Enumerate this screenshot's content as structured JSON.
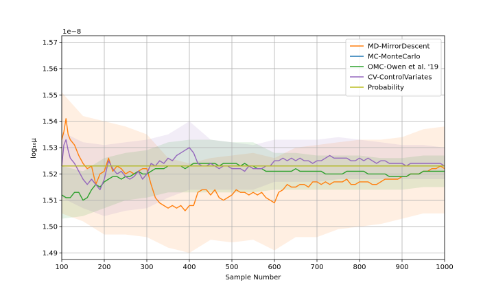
{
  "chart_data": {
    "type": "line",
    "title": "",
    "xlabel": "Sample Number",
    "ylabel": "log₁₀μ",
    "y_offset_label": "1e−8",
    "xlim": [
      100,
      1000
    ],
    "ylim": [
      1.4875,
      1.5725
    ],
    "x_ticks": [
      100,
      200,
      300,
      400,
      500,
      600,
      700,
      800,
      900,
      1000
    ],
    "x_tick_labels": [
      "100",
      "200",
      "300",
      "400",
      "500",
      "600",
      "700",
      "800",
      "900",
      "1000"
    ],
    "y_ticks": [
      1.49,
      1.5,
      1.51,
      1.52,
      1.53,
      1.54,
      1.55,
      1.56,
      1.57
    ],
    "y_tick_labels": [
      "1.49",
      "1.50",
      "1.51",
      "1.52",
      "1.53",
      "1.54",
      "1.55",
      "1.56",
      "1.57"
    ],
    "grid": true,
    "legend_position": "top-right",
    "series": [
      {
        "name": "MD-MirrorDescent",
        "color": "#ff7f0e",
        "x": [
          100,
          105,
          110,
          115,
          120,
          130,
          140,
          150,
          160,
          170,
          180,
          190,
          200,
          210,
          220,
          230,
          240,
          250,
          260,
          270,
          280,
          290,
          300,
          310,
          320,
          330,
          340,
          350,
          360,
          370,
          380,
          390,
          400,
          410,
          420,
          430,
          440,
          450,
          460,
          470,
          480,
          490,
          500,
          510,
          520,
          530,
          540,
          550,
          560,
          570,
          580,
          590,
          600,
          610,
          620,
          630,
          640,
          650,
          660,
          670,
          680,
          690,
          700,
          710,
          720,
          730,
          740,
          750,
          760,
          770,
          780,
          790,
          800,
          810,
          820,
          830,
          840,
          850,
          860,
          870,
          880,
          890,
          900,
          910,
          920,
          930,
          940,
          950,
          960,
          970,
          980,
          990,
          1000
        ],
        "y": [
          1.533,
          1.536,
          1.541,
          1.535,
          1.533,
          1.531,
          1.527,
          1.524,
          1.522,
          1.523,
          1.516,
          1.52,
          1.521,
          1.526,
          1.521,
          1.523,
          1.522,
          1.52,
          1.521,
          1.52,
          1.521,
          1.522,
          1.522,
          1.516,
          1.511,
          1.509,
          1.508,
          1.507,
          1.508,
          1.507,
          1.508,
          1.506,
          1.508,
          1.508,
          1.513,
          1.514,
          1.514,
          1.512,
          1.514,
          1.511,
          1.51,
          1.511,
          1.512,
          1.514,
          1.513,
          1.513,
          1.512,
          1.513,
          1.512,
          1.513,
          1.511,
          1.51,
          1.509,
          1.513,
          1.514,
          1.516,
          1.515,
          1.515,
          1.516,
          1.516,
          1.515,
          1.517,
          1.517,
          1.516,
          1.517,
          1.516,
          1.517,
          1.517,
          1.517,
          1.518,
          1.516,
          1.516,
          1.517,
          1.517,
          1.517,
          1.516,
          1.516,
          1.517,
          1.518,
          1.518,
          1.518,
          1.518,
          1.519,
          1.519,
          1.52,
          1.52,
          1.52,
          1.521,
          1.521,
          1.522,
          1.522,
          1.523,
          1.522
        ]
      },
      {
        "name": "MC-MonteCarlo",
        "color": "#1f77b4",
        "x": [
          100,
          1000
        ],
        "y": [
          1.523,
          1.523
        ]
      },
      {
        "name": "OMC-Owen et al. '19",
        "color": "#2ca02c",
        "x": [
          100,
          110,
          120,
          130,
          140,
          150,
          160,
          170,
          180,
          190,
          200,
          210,
          220,
          230,
          240,
          250,
          260,
          270,
          280,
          290,
          300,
          310,
          320,
          330,
          340,
          350,
          360,
          370,
          380,
          390,
          400,
          410,
          420,
          430,
          440,
          450,
          460,
          470,
          480,
          490,
          500,
          510,
          520,
          530,
          540,
          550,
          560,
          570,
          580,
          590,
          600,
          610,
          620,
          630,
          640,
          650,
          660,
          670,
          680,
          690,
          700,
          710,
          720,
          730,
          740,
          750,
          760,
          770,
          780,
          790,
          800,
          810,
          820,
          830,
          840,
          850,
          860,
          870,
          880,
          890,
          900,
          910,
          920,
          930,
          940,
          950,
          960,
          970,
          980,
          990,
          1000
        ],
        "y": [
          1.512,
          1.511,
          1.511,
          1.513,
          1.513,
          1.51,
          1.511,
          1.514,
          1.516,
          1.515,
          1.517,
          1.518,
          1.519,
          1.519,
          1.518,
          1.519,
          1.519,
          1.52,
          1.521,
          1.52,
          1.52,
          1.521,
          1.522,
          1.522,
          1.522,
          1.523,
          1.523,
          1.523,
          1.523,
          1.522,
          1.523,
          1.524,
          1.524,
          1.524,
          1.524,
          1.524,
          1.524,
          1.523,
          1.524,
          1.524,
          1.524,
          1.524,
          1.523,
          1.524,
          1.523,
          1.523,
          1.522,
          1.522,
          1.521,
          1.521,
          1.521,
          1.521,
          1.521,
          1.521,
          1.521,
          1.522,
          1.521,
          1.521,
          1.521,
          1.521,
          1.521,
          1.521,
          1.52,
          1.52,
          1.52,
          1.52,
          1.52,
          1.521,
          1.521,
          1.521,
          1.521,
          1.521,
          1.52,
          1.52,
          1.52,
          1.52,
          1.52,
          1.519,
          1.519,
          1.519,
          1.519,
          1.519,
          1.52,
          1.52,
          1.52,
          1.521,
          1.521,
          1.521,
          1.521,
          1.521,
          1.521
        ]
      },
      {
        "name": "CV-ControlVariates",
        "color": "#9467bd",
        "x": [
          100,
          105,
          110,
          115,
          120,
          130,
          140,
          150,
          160,
          170,
          180,
          190,
          200,
          210,
          220,
          230,
          240,
          250,
          260,
          270,
          280,
          290,
          300,
          310,
          320,
          330,
          340,
          350,
          360,
          370,
          380,
          390,
          400,
          410,
          420,
          430,
          440,
          450,
          460,
          470,
          480,
          490,
          500,
          510,
          520,
          530,
          540,
          550,
          560,
          570,
          580,
          590,
          600,
          610,
          620,
          630,
          640,
          650,
          660,
          670,
          680,
          690,
          700,
          710,
          720,
          730,
          740,
          750,
          760,
          770,
          780,
          790,
          800,
          810,
          820,
          830,
          840,
          850,
          860,
          870,
          880,
          890,
          900,
          910,
          920,
          930,
          940,
          950,
          960,
          970,
          980,
          990,
          1000
        ],
        "y": [
          1.523,
          1.531,
          1.533,
          1.529,
          1.526,
          1.524,
          1.521,
          1.518,
          1.516,
          1.518,
          1.516,
          1.514,
          1.518,
          1.525,
          1.522,
          1.52,
          1.521,
          1.519,
          1.518,
          1.519,
          1.521,
          1.518,
          1.52,
          1.524,
          1.523,
          1.525,
          1.524,
          1.526,
          1.525,
          1.527,
          1.528,
          1.529,
          1.53,
          1.528,
          1.524,
          1.523,
          1.523,
          1.524,
          1.523,
          1.522,
          1.523,
          1.523,
          1.522,
          1.522,
          1.522,
          1.521,
          1.523,
          1.522,
          1.522,
          1.522,
          1.523,
          1.523,
          1.525,
          1.525,
          1.526,
          1.525,
          1.526,
          1.525,
          1.526,
          1.525,
          1.525,
          1.524,
          1.525,
          1.525,
          1.526,
          1.527,
          1.526,
          1.526,
          1.526,
          1.526,
          1.525,
          1.525,
          1.526,
          1.525,
          1.526,
          1.525,
          1.524,
          1.525,
          1.525,
          1.524,
          1.524,
          1.524,
          1.524,
          1.523,
          1.524,
          1.524,
          1.524,
          1.524,
          1.524,
          1.524,
          1.524,
          1.524,
          1.523
        ]
      },
      {
        "name": "Probability",
        "color": "#bcbd22",
        "x": [
          100,
          1000
        ],
        "y": [
          1.523,
          1.523
        ]
      }
    ],
    "bands": [
      {
        "series": "MD-MirrorDescent",
        "color": "#ff7f0e",
        "x": [
          100,
          150,
          200,
          250,
          300,
          350,
          400,
          450,
          500,
          550,
          600,
          650,
          700,
          750,
          800,
          850,
          900,
          950,
          1000
        ],
        "lower": [
          1.505,
          1.502,
          1.497,
          1.497,
          1.496,
          1.492,
          1.49,
          1.495,
          1.494,
          1.495,
          1.491,
          1.496,
          1.496,
          1.499,
          1.5,
          1.501,
          1.503,
          1.505,
          1.505
        ],
        "upper": [
          1.551,
          1.542,
          1.54,
          1.538,
          1.535,
          1.526,
          1.524,
          1.526,
          1.527,
          1.528,
          1.526,
          1.53,
          1.531,
          1.532,
          1.533,
          1.533,
          1.534,
          1.537,
          1.538
        ]
      },
      {
        "series": "CV-ControlVariates",
        "color": "#9467bd",
        "x": [
          100,
          150,
          200,
          250,
          300,
          350,
          400,
          450,
          500,
          550,
          600,
          650,
          700,
          750,
          800,
          850,
          900,
          950,
          1000
        ],
        "lower": [
          1.511,
          1.507,
          1.504,
          1.506,
          1.507,
          1.511,
          1.514,
          1.514,
          1.514,
          1.514,
          1.517,
          1.517,
          1.517,
          1.518,
          1.518,
          1.518,
          1.518,
          1.518,
          1.518
        ],
        "upper": [
          1.536,
          1.532,
          1.531,
          1.532,
          1.533,
          1.535,
          1.54,
          1.533,
          1.532,
          1.531,
          1.533,
          1.533,
          1.533,
          1.534,
          1.533,
          1.532,
          1.531,
          1.531,
          1.53
        ]
      },
      {
        "series": "OMC-Owen et al. '19",
        "color": "#2ca02c",
        "x": [
          100,
          150,
          200,
          250,
          300,
          350,
          400,
          450,
          500,
          550,
          600,
          650,
          700,
          750,
          800,
          850,
          900,
          950,
          1000
        ],
        "lower": [
          1.503,
          1.504,
          1.507,
          1.51,
          1.511,
          1.513,
          1.513,
          1.513,
          1.513,
          1.513,
          1.514,
          1.514,
          1.514,
          1.514,
          1.514,
          1.514,
          1.514,
          1.515,
          1.515
        ],
        "upper": [
          1.523,
          1.521,
          1.526,
          1.528,
          1.529,
          1.532,
          1.533,
          1.533,
          1.532,
          1.532,
          1.528,
          1.528,
          1.527,
          1.527,
          1.527,
          1.526,
          1.526,
          1.527,
          1.527
        ]
      }
    ]
  }
}
